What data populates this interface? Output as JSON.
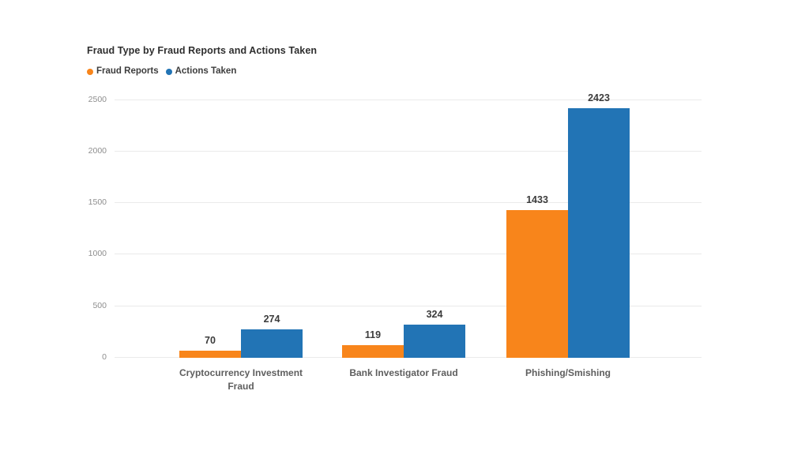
{
  "title": "Fraud Type by Fraud Reports and Actions Taken",
  "colors": {
    "fraud_reports": "#F8851B",
    "actions_taken": "#2274B5",
    "gridline": "#EAEAEA"
  },
  "chart_data": {
    "type": "bar",
    "title": "Fraud Type by Fraud Reports and Actions Taken",
    "categories": [
      "Cryptocurrency Investment Fraud",
      "Bank Investigator Fraud",
      "Phishing/Smishing"
    ],
    "series": [
      {
        "name": "Fraud Reports",
        "color": "#F8851B",
        "values": [
          70,
          119,
          1433
        ]
      },
      {
        "name": "Actions Taken",
        "color": "#2274B5",
        "values": [
          274,
          324,
          2423
        ]
      }
    ],
    "xlabel": "",
    "ylabel": "",
    "ylim": [
      0,
      2500
    ],
    "yticks": [
      0,
      500,
      1000,
      1500,
      2000,
      2500
    ],
    "grid": true,
    "legend_position": "top-left",
    "value_labels_shown": true
  }
}
